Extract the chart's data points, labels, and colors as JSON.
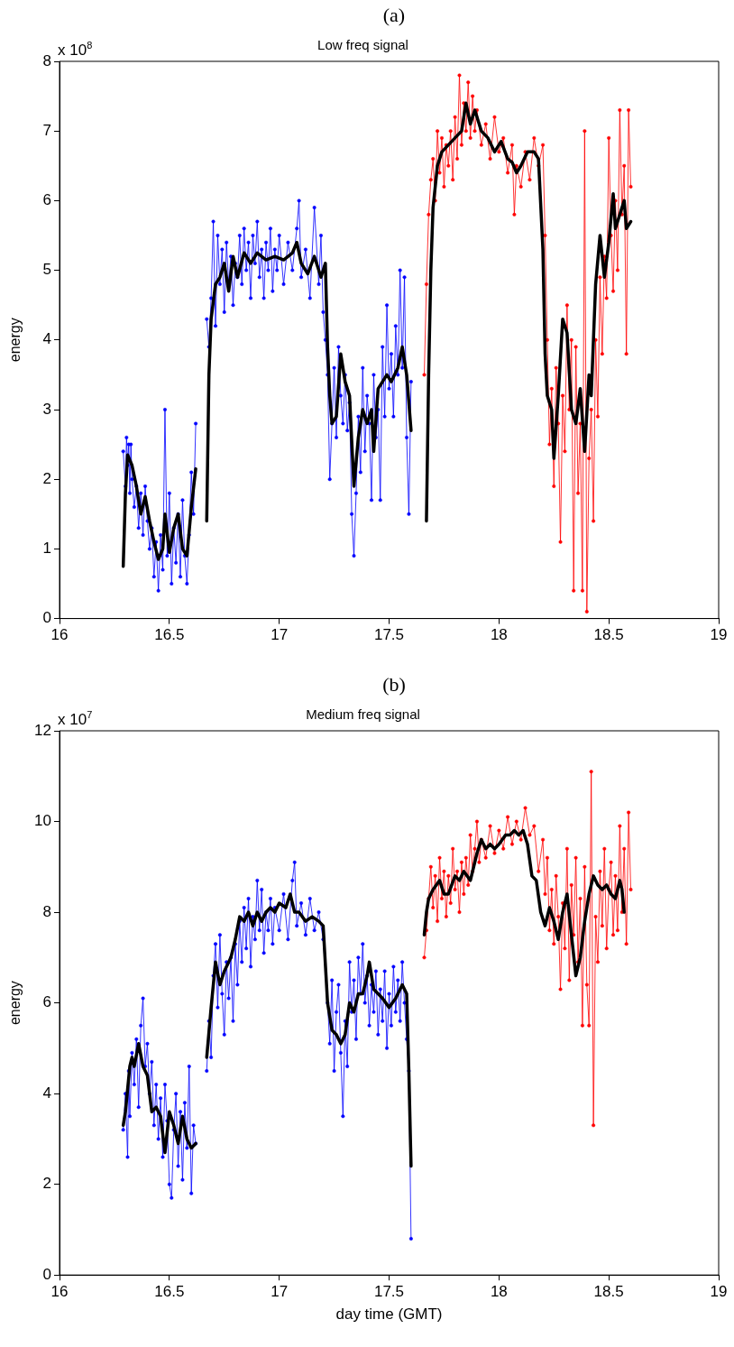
{
  "chart_data": [
    {
      "type": "line",
      "title": "Low freq signal",
      "ylabel": "energy",
      "annotations": [
        "(a)",
        "x 10$^{8}$"
      ],
      "xlim": [
        16,
        19
      ],
      "xticks": [
        16,
        16.5,
        17,
        17.5,
        18,
        18.5,
        19
      ],
      "ylim": [
        0,
        8
      ],
      "yticks": [
        0,
        1,
        2,
        3,
        4,
        5,
        6,
        7,
        8
      ],
      "series": [
        {
          "color": "#0000ff",
          "marker": "circle",
          "x": [
            16.29,
            16.3,
            16.305,
            16.31,
            16.315,
            16.32,
            16.325,
            16.33,
            16.34,
            16.35,
            16.36,
            16.37,
            16.38,
            16.39,
            16.4,
            16.41,
            16.42,
            16.43,
            16.44,
            16.45,
            16.46,
            16.47,
            16.48,
            16.49,
            16.5,
            16.51,
            16.52,
            16.53,
            16.54,
            16.55,
            16.56,
            16.57,
            16.58,
            16.59,
            16.6,
            16.61,
            16.62,
            16.645,
            16.67,
            16.68,
            16.69,
            16.7,
            16.71,
            16.72,
            16.73,
            16.74,
            16.75,
            16.76,
            16.77,
            16.78,
            16.79,
            16.8,
            16.81,
            16.82,
            16.83,
            16.84,
            16.85,
            16.86,
            16.87,
            16.88,
            16.89,
            16.9,
            16.91,
            16.92,
            16.93,
            16.94,
            16.95,
            16.96,
            16.97,
            16.98,
            16.99,
            17,
            17.02,
            17.04,
            17.06,
            17.08,
            17.09,
            17.1,
            17.12,
            17.14,
            17.16,
            17.18,
            17.19,
            17.2,
            17.21,
            17.22,
            17.23,
            17.24,
            17.25,
            17.26,
            17.27,
            17.28,
            17.29,
            17.3,
            17.31,
            17.32,
            17.33,
            17.34,
            17.35,
            17.36,
            17.37,
            17.38,
            17.39,
            17.4,
            17.41,
            17.42,
            17.43,
            17.44,
            17.45,
            17.46,
            17.47,
            17.48,
            17.49,
            17.5,
            17.51,
            17.52,
            17.53,
            17.54,
            17.55,
            17.56,
            17.57,
            17.58,
            17.59,
            17.6
          ],
          "values": [
            2.4,
            1.9,
            2.6,
            2.2,
            2.5,
            1.8,
            2.5,
            2.0,
            1.6,
            1.9,
            1.3,
            1.8,
            1.2,
            1.9,
            1.4,
            1.0,
            1.3,
            0.6,
            1.1,
            0.4,
            1.2,
            0.7,
            3.0,
            0.9,
            1.8,
            0.5,
            1.3,
            0.8,
            1.5,
            0.6,
            1.7,
            0.9,
            0.5,
            1.2,
            2.1,
            1.5,
            2.8,
            null,
            4.3,
            3.9,
            4.6,
            5.7,
            4.2,
            5.5,
            4.8,
            5.3,
            4.4,
            5.4,
            4.8,
            5.2,
            4.5,
            5.1,
            4.9,
            5.5,
            4.8,
            5.6,
            5.0,
            5.4,
            4.6,
            5.5,
            5.1,
            5.7,
            4.9,
            5.3,
            4.6,
            5.4,
            5.0,
            5.6,
            4.7,
            5.3,
            5.0,
            5.5,
            4.8,
            5.4,
            5.0,
            5.6,
            6.0,
            4.9,
            5.3,
            4.6,
            5.9,
            4.8,
            5.5,
            4.4,
            4.0,
            3.5,
            2.0,
            2.8,
            3.6,
            2.6,
            3.9,
            3.2,
            2.8,
            3.5,
            2.7,
            3.1,
            1.5,
            0.9,
            1.8,
            2.9,
            2.1,
            3.6,
            2.4,
            3.2,
            2.8,
            1.7,
            3.5,
            2.6,
            3.0,
            1.7,
            3.9,
            2.9,
            4.5,
            3.3,
            3.8,
            2.9,
            4.2,
            3.5,
            5.0,
            3.6,
            4.9,
            2.6,
            1.5,
            3.4
          ]
        },
        {
          "color": "#ff0000",
          "marker": "circle",
          "x": [
            17.66,
            17.67,
            17.68,
            17.69,
            17.7,
            17.71,
            17.72,
            17.73,
            17.74,
            17.75,
            17.76,
            17.77,
            17.78,
            17.79,
            17.8,
            17.81,
            17.82,
            17.83,
            17.84,
            17.85,
            17.86,
            17.87,
            17.88,
            17.89,
            17.9,
            17.92,
            17.94,
            17.96,
            17.98,
            18,
            18.02,
            18.04,
            18.06,
            18.07,
            18.08,
            18.1,
            18.12,
            18.14,
            18.16,
            18.18,
            18.2,
            18.21,
            18.22,
            18.23,
            18.24,
            18.25,
            18.26,
            18.27,
            18.28,
            18.29,
            18.3,
            18.31,
            18.32,
            18.33,
            18.34,
            18.35,
            18.36,
            18.37,
            18.38,
            18.39,
            18.4,
            18.41,
            18.42,
            18.43,
            18.44,
            18.45,
            18.46,
            18.47,
            18.48,
            18.49,
            18.5,
            18.51,
            18.52,
            18.53,
            18.54,
            18.55,
            18.56,
            18.57,
            18.58,
            18.59,
            18.6
          ],
          "values": [
            3.5,
            4.8,
            5.8,
            6.3,
            6.6,
            6.0,
            7.0,
            6.4,
            6.9,
            6.2,
            6.8,
            6.5,
            7.0,
            6.3,
            7.2,
            6.6,
            7.8,
            6.8,
            7.4,
            7.0,
            7.7,
            6.9,
            7.5,
            7.0,
            7.3,
            6.8,
            7.1,
            6.6,
            7.2,
            6.7,
            6.9,
            6.4,
            6.8,
            5.8,
            6.5,
            6.2,
            6.7,
            6.3,
            6.9,
            6.5,
            6.8,
            5.5,
            4.0,
            2.5,
            3.3,
            1.9,
            3.6,
            2.8,
            1.1,
            3.2,
            2.4,
            4.5,
            3.0,
            4.0,
            0.4,
            3.9,
            1.8,
            2.8,
            0.4,
            7.0,
            0.1,
            2.3,
            3.0,
            1.4,
            4.0,
            2.9,
            4.9,
            3.8,
            5.2,
            4.6,
            6.9,
            5.5,
            4.7,
            6.0,
            5.0,
            7.3,
            5.8,
            6.5,
            3.8,
            7.3,
            6.2
          ]
        },
        {
          "color": "#000000",
          "marker": "none",
          "x": [
            16.29,
            16.3,
            16.31,
            16.33,
            16.35,
            16.37,
            16.39,
            16.41,
            16.43,
            16.45,
            16.47,
            16.48,
            16.5,
            16.52,
            16.54,
            16.56,
            16.58,
            16.6,
            16.62,
            16.645,
            16.67,
            16.68,
            16.69,
            16.71,
            16.73,
            16.75,
            16.77,
            16.79,
            16.81,
            16.84,
            16.87,
            16.9,
            16.94,
            16.98,
            17.02,
            17.06,
            17.08,
            17.1,
            17.13,
            17.16,
            17.19,
            17.21,
            17.22,
            17.23,
            17.24,
            17.26,
            17.28,
            17.3,
            17.32,
            17.34,
            17.36,
            17.38,
            17.4,
            17.42,
            17.43,
            17.45,
            17.47,
            17.49,
            17.51,
            17.54,
            17.56,
            17.58,
            17.6,
            17.635,
            17.67,
            17.68,
            17.69,
            17.7,
            17.72,
            17.74,
            17.77,
            17.8,
            17.83,
            17.85,
            17.87,
            17.89,
            17.92,
            17.95,
            17.98,
            18.01,
            18.04,
            18.06,
            18.08,
            18.1,
            18.13,
            18.16,
            18.18,
            18.2,
            18.21,
            18.22,
            18.24,
            18.25,
            18.27,
            18.29,
            18.31,
            18.33,
            18.35,
            18.37,
            18.39,
            18.41,
            18.42,
            18.44,
            18.46,
            18.48,
            18.5,
            18.52,
            18.53,
            18.55,
            18.57,
            18.58,
            18.6
          ],
          "values": [
            0.75,
            1.8,
            2.35,
            2.2,
            1.9,
            1.5,
            1.75,
            1.4,
            1.1,
            0.85,
            1.0,
            1.5,
            0.95,
            1.3,
            1.5,
            1.0,
            0.9,
            1.6,
            2.15,
            null,
            1.4,
            3.5,
            4.3,
            4.8,
            4.9,
            5.1,
            4.7,
            5.2,
            4.9,
            5.25,
            5.1,
            5.25,
            5.15,
            5.2,
            5.15,
            5.25,
            5.4,
            5.1,
            4.95,
            5.2,
            4.9,
            5.1,
            3.9,
            3.2,
            2.8,
            2.9,
            3.8,
            3.4,
            3.2,
            1.9,
            2.6,
            3.0,
            2.8,
            3.0,
            2.4,
            3.3,
            3.4,
            3.5,
            3.4,
            3.6,
            3.9,
            3.5,
            2.7,
            null,
            1.4,
            3.5,
            5.0,
            5.9,
            6.5,
            6.7,
            6.8,
            6.9,
            7.0,
            7.4,
            7.1,
            7.3,
            7.0,
            6.9,
            6.7,
            6.85,
            6.6,
            6.55,
            6.4,
            6.5,
            6.7,
            6.7,
            6.6,
            5.3,
            3.8,
            3.2,
            3.0,
            2.3,
            3.2,
            4.3,
            4.1,
            3.0,
            2.8,
            3.3,
            2.4,
            3.5,
            3.2,
            4.8,
            5.5,
            4.9,
            5.4,
            6.1,
            5.6,
            5.8,
            6.0,
            5.6,
            5.7
          ]
        }
      ]
    },
    {
      "type": "line",
      "title": "Medium freq signal",
      "xlabel": "day time (GMT)",
      "ylabel": "energy",
      "annotations": [
        "(b)",
        "x 10$^{7}$"
      ],
      "xlim": [
        16,
        19
      ],
      "xticks": [
        16,
        16.5,
        17,
        17.5,
        18,
        18.5,
        19
      ],
      "ylim": [
        0,
        12
      ],
      "yticks": [
        0,
        2,
        4,
        6,
        8,
        10,
        12
      ],
      "series": [
        {
          "color": "#0000ff",
          "marker": "circle",
          "x": [
            16.29,
            16.3,
            16.31,
            16.315,
            16.32,
            16.33,
            16.34,
            16.35,
            16.36,
            16.37,
            16.38,
            16.39,
            16.4,
            16.41,
            16.42,
            16.43,
            16.44,
            16.45,
            16.46,
            16.47,
            16.48,
            16.49,
            16.5,
            16.51,
            16.52,
            16.53,
            16.54,
            16.55,
            16.56,
            16.57,
            16.58,
            16.59,
            16.6,
            16.61,
            16.62,
            16.645,
            16.67,
            16.68,
            16.69,
            16.7,
            16.71,
            16.72,
            16.73,
            16.74,
            16.75,
            16.76,
            16.77,
            16.78,
            16.79,
            16.8,
            16.81,
            16.82,
            16.83,
            16.84,
            16.85,
            16.86,
            16.87,
            16.88,
            16.89,
            16.9,
            16.91,
            16.92,
            16.93,
            16.94,
            16.95,
            16.96,
            16.97,
            16.98,
            17,
            17.02,
            17.04,
            17.06,
            17.07,
            17.08,
            17.1,
            17.12,
            17.14,
            17.16,
            17.18,
            17.2,
            17.22,
            17.23,
            17.24,
            17.25,
            17.26,
            17.27,
            17.28,
            17.29,
            17.3,
            17.31,
            17.32,
            17.33,
            17.34,
            17.35,
            17.36,
            17.37,
            17.38,
            17.39,
            17.4,
            17.41,
            17.42,
            17.43,
            17.44,
            17.45,
            17.46,
            17.47,
            17.48,
            17.49,
            17.5,
            17.51,
            17.52,
            17.53,
            17.54,
            17.55,
            17.56,
            17.57,
            17.58,
            17.59,
            17.6
          ],
          "values": [
            3.2,
            4.0,
            2.6,
            4.5,
            3.5,
            4.9,
            4.2,
            5.2,
            3.7,
            5.5,
            6.1,
            4.6,
            5.1,
            4.0,
            4.7,
            3.3,
            4.2,
            3.0,
            3.9,
            2.6,
            4.2,
            3.4,
            2.0,
            1.7,
            3.2,
            4.0,
            2.4,
            3.6,
            2.1,
            3.8,
            2.8,
            4.6,
            1.8,
            3.3,
            2.9,
            null,
            4.5,
            5.6,
            4.8,
            6.6,
            7.3,
            5.9,
            7.5,
            6.2,
            5.3,
            6.9,
            6.1,
            7.0,
            5.6,
            7.3,
            6.4,
            7.8,
            6.9,
            8.1,
            7.2,
            8.3,
            6.8,
            7.9,
            7.4,
            8.7,
            7.6,
            8.5,
            7.1,
            8.0,
            7.6,
            8.3,
            7.3,
            8.1,
            7.6,
            8.4,
            7.4,
            8.7,
            9.1,
            7.7,
            8.2,
            7.5,
            8.3,
            7.6,
            8.0,
            7.4,
            6.0,
            5.1,
            6.5,
            4.5,
            5.8,
            6.4,
            4.9,
            3.5,
            5.6,
            4.6,
            6.9,
            5.8,
            6.5,
            5.2,
            7.0,
            6.2,
            7.3,
            6.0,
            6.6,
            5.5,
            6.4,
            5.8,
            6.7,
            5.3,
            6.3,
            5.6,
            6.7,
            5.0,
            6.2,
            5.5,
            6.8,
            5.8,
            6.5,
            5.6,
            6.9,
            6.0,
            5.2,
            4.5,
            0.8
          ]
        },
        {
          "color": "#ff0000",
          "marker": "circle",
          "x": [
            17.66,
            17.67,
            17.68,
            17.69,
            17.7,
            17.71,
            17.72,
            17.73,
            17.74,
            17.75,
            17.76,
            17.77,
            17.78,
            17.79,
            17.8,
            17.81,
            17.82,
            17.83,
            17.84,
            17.85,
            17.86,
            17.87,
            17.88,
            17.89,
            17.9,
            17.91,
            17.92,
            17.94,
            17.96,
            17.98,
            18,
            18.02,
            18.04,
            18.06,
            18.08,
            18.1,
            18.12,
            18.14,
            18.16,
            18.18,
            18.2,
            18.21,
            18.22,
            18.23,
            18.24,
            18.25,
            18.26,
            18.27,
            18.28,
            18.29,
            18.3,
            18.31,
            18.32,
            18.33,
            18.34,
            18.35,
            18.36,
            18.37,
            18.38,
            18.39,
            18.4,
            18.41,
            18.42,
            18.43,
            18.44,
            18.45,
            18.46,
            18.47,
            18.48,
            18.49,
            18.5,
            18.51,
            18.52,
            18.53,
            18.54,
            18.55,
            18.56,
            18.57,
            18.58,
            18.59,
            18.6
          ],
          "values": [
            7.0,
            7.6,
            8.3,
            9.0,
            8.1,
            8.8,
            7.8,
            9.2,
            8.3,
            8.9,
            7.9,
            8.8,
            8.2,
            9.4,
            8.5,
            8.9,
            8.0,
            9.1,
            8.4,
            9.2,
            8.6,
            9.7,
            8.9,
            9.4,
            10.0,
            9.1,
            9.6,
            9.2,
            9.9,
            9.3,
            9.8,
            9.4,
            10.1,
            9.5,
            10.0,
            9.6,
            10.3,
            9.7,
            9.9,
            8.9,
            9.6,
            8.4,
            9.2,
            7.6,
            8.5,
            7.3,
            8.8,
            7.9,
            6.3,
            8.2,
            7.2,
            9.4,
            6.5,
            8.6,
            7.5,
            9.2,
            6.9,
            8.3,
            5.5,
            9.0,
            6.4,
            5.5,
            11.1,
            3.3,
            7.9,
            6.9,
            8.9,
            7.7,
            9.4,
            7.2,
            8.5,
            9.1,
            7.5,
            8.8,
            7.6,
            9.9,
            8.0,
            9.4,
            7.3,
            10.2,
            8.5
          ]
        },
        {
          "color": "#000000",
          "marker": "none",
          "x": [
            16.29,
            16.3,
            16.32,
            16.33,
            16.34,
            16.36,
            16.38,
            16.4,
            16.42,
            16.44,
            16.46,
            16.48,
            16.5,
            16.52,
            16.54,
            16.56,
            16.58,
            16.6,
            16.62,
            16.645,
            16.67,
            16.69,
            16.71,
            16.73,
            16.75,
            16.78,
            16.8,
            16.82,
            16.84,
            16.86,
            16.88,
            16.9,
            16.92,
            16.94,
            16.96,
            16.98,
            17,
            17.03,
            17.05,
            17.07,
            17.09,
            17.12,
            17.15,
            17.18,
            17.2,
            17.22,
            17.24,
            17.26,
            17.28,
            17.3,
            17.32,
            17.34,
            17.36,
            17.38,
            17.4,
            17.41,
            17.43,
            17.45,
            17.47,
            17.5,
            17.53,
            17.56,
            17.58,
            17.59,
            17.6,
            17.63,
            17.66,
            17.67,
            17.68,
            17.7,
            17.73,
            17.75,
            17.77,
            17.8,
            17.82,
            17.84,
            17.87,
            17.9,
            17.92,
            17.94,
            17.96,
            17.98,
            18,
            18.03,
            18.05,
            18.07,
            18.09,
            18.11,
            18.13,
            18.15,
            18.17,
            18.19,
            18.21,
            18.23,
            18.25,
            18.27,
            18.29,
            18.31,
            18.33,
            18.35,
            18.37,
            18.39,
            18.41,
            18.43,
            18.45,
            18.47,
            18.49,
            18.51,
            18.53,
            18.55,
            18.56,
            18.57
          ],
          "values": [
            3.3,
            3.6,
            4.6,
            4.8,
            4.6,
            5.1,
            4.6,
            4.4,
            3.6,
            3.7,
            3.5,
            2.7,
            3.6,
            3.3,
            2.9,
            3.5,
            3.0,
            2.8,
            2.9,
            null,
            4.8,
            5.9,
            6.9,
            6.4,
            6.7,
            7.0,
            7.4,
            7.9,
            7.8,
            8.0,
            7.7,
            8.0,
            7.8,
            8.0,
            8.1,
            8.0,
            8.2,
            8.1,
            8.4,
            8.0,
            8.0,
            7.8,
            7.9,
            7.8,
            7.7,
            6.0,
            5.4,
            5.3,
            5.1,
            5.3,
            6.0,
            5.8,
            6.2,
            6.2,
            6.6,
            6.9,
            6.3,
            6.2,
            6.1,
            5.9,
            6.1,
            6.4,
            6.2,
            4.5,
            2.4,
            null,
            7.5,
            8.0,
            8.3,
            8.5,
            8.7,
            8.4,
            8.4,
            8.8,
            8.7,
            8.9,
            8.7,
            9.3,
            9.6,
            9.4,
            9.5,
            9.4,
            9.5,
            9.7,
            9.7,
            9.8,
            9.7,
            9.8,
            9.5,
            8.8,
            8.7,
            8.0,
            7.7,
            8.1,
            7.8,
            7.4,
            8.0,
            8.4,
            7.5,
            6.6,
            7.0,
            7.8,
            8.4,
            8.8,
            8.6,
            8.5,
            8.6,
            8.4,
            8.3,
            8.7,
            8.5,
            8.0
          ]
        }
      ]
    }
  ]
}
